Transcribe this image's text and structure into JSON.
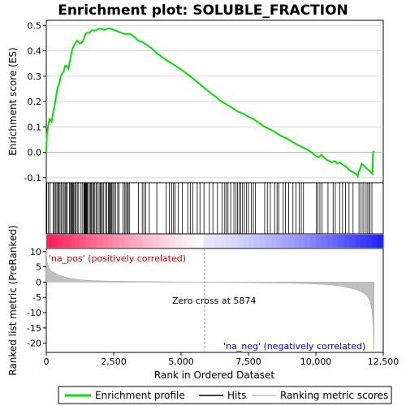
{
  "chart_data": {
    "type": "line",
    "title": "Enrichment plot: SOLUBLE_FRACTION",
    "top_panel": {
      "ylabel": "Enrichment score (ES)",
      "ylim": [
        -0.12,
        0.52
      ],
      "yticks": [
        -0.1,
        0.0,
        0.1,
        0.2,
        0.3,
        0.4,
        0.5
      ],
      "ytick_labels": [
        "-0.1",
        "0.0",
        "0.1",
        "0.2",
        "0.3",
        "0.4",
        "0.5"
      ],
      "grid": true,
      "series": [
        {
          "name": "Enrichment profile",
          "color": "#00e000",
          "x": [
            0,
            20,
            60,
            120,
            200,
            260,
            320,
            380,
            430,
            480,
            540,
            590,
            650,
            700,
            760,
            820,
            880,
            930,
            980,
            1030,
            1080,
            1150,
            1230,
            1300,
            1370,
            1430,
            1480,
            1530,
            1600,
            1680,
            1760,
            1840,
            1920,
            2000,
            2080,
            2160,
            2250,
            2330,
            2410,
            2480,
            2550,
            2620,
            2700,
            2800,
            2900,
            3000,
            3100,
            3200,
            3300,
            3400,
            3550,
            3700,
            3900,
            4100,
            4300,
            4500,
            4700,
            4900,
            5100,
            5300,
            5500,
            5700,
            5900,
            6100,
            6300,
            6500,
            6700,
            6900,
            7100,
            7300,
            7500,
            7700,
            7900,
            8100,
            8300,
            8500,
            8700,
            8900,
            9100,
            9300,
            9500,
            9700,
            9900,
            10000,
            10100,
            10200,
            10300,
            10400,
            10500,
            10600,
            10700,
            10800,
            10900,
            11000,
            11100,
            11200,
            11300,
            11400,
            11500,
            11550,
            11580,
            11620,
            11660,
            11700,
            11800,
            11900,
            12000,
            12100,
            12120,
            12150
          ],
          "y": [
            0.0,
            0.07,
            0.1,
            0.13,
            0.12,
            0.16,
            0.19,
            0.23,
            0.26,
            0.27,
            0.3,
            0.31,
            0.32,
            0.34,
            0.34,
            0.33,
            0.36,
            0.39,
            0.41,
            0.42,
            0.43,
            0.44,
            0.43,
            0.43,
            0.44,
            0.46,
            0.47,
            0.47,
            0.47,
            0.48,
            0.48,
            0.48,
            0.485,
            0.487,
            0.485,
            0.482,
            0.487,
            0.488,
            0.486,
            0.483,
            0.48,
            0.478,
            0.474,
            0.47,
            0.466,
            0.466,
            0.467,
            0.46,
            0.452,
            0.44,
            0.435,
            0.425,
            0.41,
            0.39,
            0.375,
            0.36,
            0.347,
            0.333,
            0.318,
            0.302,
            0.285,
            0.268,
            0.25,
            0.233,
            0.217,
            0.2,
            0.188,
            0.175,
            0.16,
            0.152,
            0.14,
            0.13,
            0.115,
            0.1,
            0.09,
            0.078,
            0.065,
            0.055,
            0.043,
            0.03,
            0.02,
            0.01,
            -0.005,
            -0.015,
            -0.02,
            -0.01,
            -0.02,
            -0.03,
            -0.035,
            -0.04,
            -0.035,
            -0.045,
            -0.04,
            -0.05,
            -0.055,
            -0.065,
            -0.075,
            -0.08,
            -0.085,
            -0.095,
            -0.08,
            -0.07,
            -0.06,
            -0.045,
            -0.055,
            -0.065,
            -0.075,
            -0.085,
            0.0,
            0.005
          ]
        }
      ]
    },
    "hits": [
      20,
      80,
      140,
      260,
      300,
      340,
      390,
      430,
      470,
      510,
      560,
      610,
      660,
      700,
      740,
      780,
      860,
      900,
      930,
      960,
      990,
      1020,
      1060,
      1100,
      1150,
      1200,
      1290,
      1350,
      1400,
      1420,
      1440,
      1460,
      1480,
      1500,
      1520,
      1560,
      1620,
      1650,
      1680,
      1720,
      1760,
      1800,
      1850,
      1900,
      1960,
      2000,
      2040,
      2080,
      2130,
      2200,
      2240,
      2300,
      2330,
      2360,
      2400,
      2430,
      2470,
      2520,
      2570,
      2650,
      2700,
      2840,
      2900,
      2950,
      3000,
      3040,
      3080,
      3420,
      3560,
      3620,
      3690,
      3820,
      4100,
      4450,
      4560,
      4650,
      4720,
      4780,
      4900,
      5050,
      5250,
      5350,
      5430,
      5600,
      5700,
      5850,
      6050,
      6180,
      6350,
      6520,
      6620,
      6680,
      6740,
      6840,
      6960,
      7040,
      7090,
      7150,
      7210,
      7280,
      7350,
      7430,
      7500,
      7610,
      7680,
      7760,
      8100,
      8200,
      8310,
      8470,
      8560,
      8620,
      8790,
      8870,
      8990,
      9150,
      9260,
      9380,
      9460,
      9540,
      10020,
      10080,
      10150,
      10230,
      10450,
      10640,
      10720,
      10880,
      10990,
      11100,
      11230,
      11380,
      11600,
      11680,
      11750,
      11830,
      11900,
      11960,
      12010,
      12080
    ],
    "bottom_panel": {
      "ylabel": "Ranked list metric (PreRanked)",
      "xlabel": "Rank in Ordered Dataset",
      "ylim": [
        -23,
        11
      ],
      "yticks": [
        10,
        5,
        0,
        -5,
        -10,
        -15,
        -20
      ],
      "ytick_labels": [
        "10",
        "5",
        "0",
        "-5",
        "-10",
        "-15",
        "-20"
      ],
      "xlim": [
        0,
        12500
      ],
      "xticks": [
        0,
        2500,
        5000,
        7500,
        10000,
        12500
      ],
      "xtick_labels": [
        "0",
        "2,500",
        "5,000",
        "7,500",
        "10,000",
        "12,500"
      ],
      "metric_x": [
        0,
        30,
        80,
        150,
        250,
        400,
        600,
        900,
        1300,
        1800,
        2500,
        3500,
        4500,
        5874,
        7000,
        8000,
        9000,
        9800,
        10500,
        11000,
        11400,
        11700,
        11900,
        12000,
        12080,
        12130,
        12160
      ],
      "metric_y": [
        10.5,
        6.5,
        5.0,
        4.0,
        3.3,
        2.6,
        1.9,
        1.2,
        0.7,
        0.45,
        0.3,
        0.2,
        0.1,
        0.0,
        -0.1,
        -0.2,
        -0.35,
        -0.55,
        -0.85,
        -1.4,
        -2.2,
        -3.2,
        -4.5,
        -6.0,
        -9.0,
        -15.0,
        -22.0
      ],
      "zero_cross_rank": 5874,
      "zero_cross_label": "Zero cross at 5874",
      "pos_label": "'na_pos' (positively correlated)",
      "neg_label": "'na_neg' (negatively correlated)"
    },
    "legend": {
      "placement": "bottom",
      "entries": [
        {
          "label": "Enrichment profile",
          "color": "#00e000",
          "kind": "line"
        },
        {
          "label": "Hits",
          "color": "#000000",
          "kind": "line"
        },
        {
          "label": "Ranking metric scores",
          "color": "#c0c0c0",
          "kind": "line"
        }
      ]
    },
    "colors": {
      "enrichment": "#00e000",
      "hits": "#000000",
      "metric_fill": "#c0c0c0",
      "pos_label": "#cc0000",
      "neg_label": "#0000cc",
      "grid": "#d8d8d8"
    }
  }
}
